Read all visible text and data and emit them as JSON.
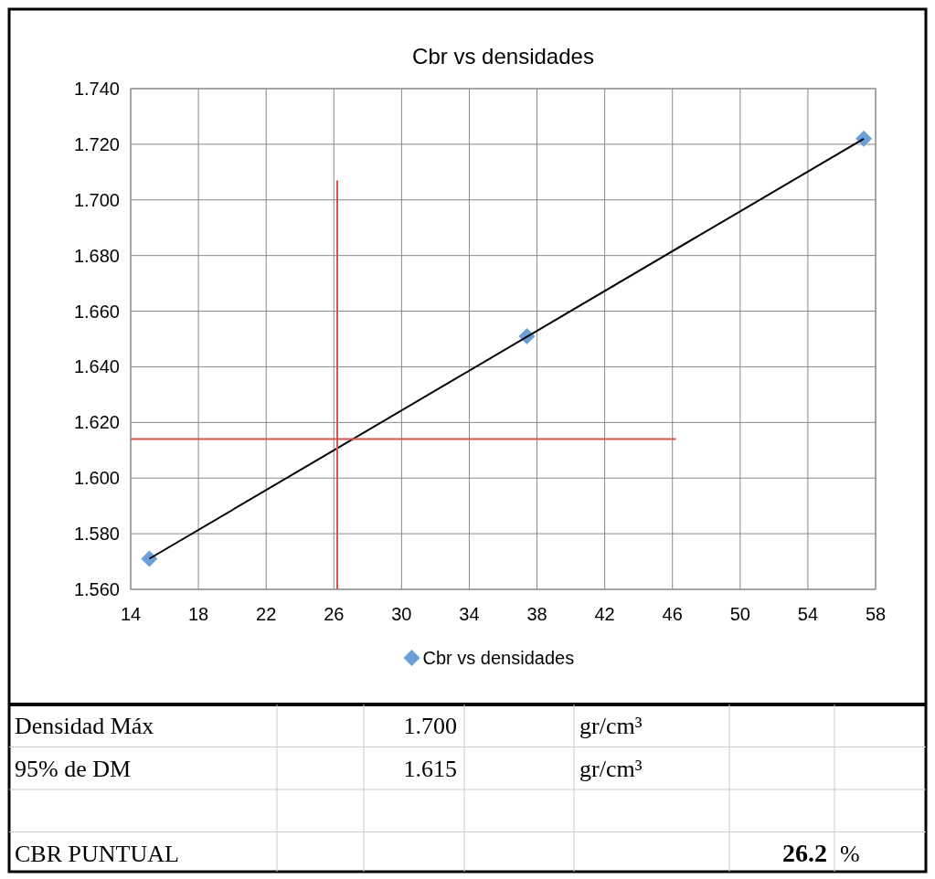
{
  "chart_data": {
    "type": "scatter",
    "title": "Cbr vs densidades",
    "marker": "diamond",
    "grid": true,
    "legend": "bottom",
    "xlim": [
      14,
      58
    ],
    "xticks": [
      14,
      18,
      22,
      26,
      30,
      34,
      38,
      42,
      46,
      50,
      54,
      58
    ],
    "ylim": [
      1.56,
      1.74
    ],
    "yticks": [
      {
        "value": 1.56,
        "label": "1.560"
      },
      {
        "value": 1.58,
        "label": "1.580"
      },
      {
        "value": 1.6,
        "label": "1.600"
      },
      {
        "value": 1.62,
        "label": "1.620"
      },
      {
        "value": 1.64,
        "label": "1.640"
      },
      {
        "value": 1.66,
        "label": "1.660"
      },
      {
        "value": 1.68,
        "label": "1.680"
      },
      {
        "value": 1.7,
        "label": "1.700"
      },
      {
        "value": 1.72,
        "label": "1.720"
      },
      {
        "value": 1.74,
        "label": "1.740"
      }
    ],
    "series": [
      {
        "name": "Cbr vs densidades",
        "color": "#6a9fd8",
        "x": [
          15.1,
          37.4,
          57.3
        ],
        "values": [
          1.571,
          1.651,
          1.722
        ]
      },
      {
        "type": "line",
        "marker": "none",
        "color": "#000000",
        "x": [
          15.1,
          57.3
        ],
        "values": [
          1.571,
          1.722
        ]
      },
      {
        "type": "line",
        "marker": "none",
        "color": "#d9534f",
        "x": [
          26.2,
          26.2
        ],
        "values": [
          1.56,
          1.707
        ]
      },
      {
        "type": "line",
        "marker": "none",
        "color": "#d9534f",
        "x": [
          14,
          46.2
        ],
        "values": [
          1.614,
          1.614
        ]
      }
    ],
    "annotations": [
      "Densidad Máx",
      "1.700",
      "gr/cm³",
      "95% de DM",
      "1.615",
      "gr/cm³",
      "CBR PUNTUAL",
      "26.2",
      "%"
    ]
  }
}
